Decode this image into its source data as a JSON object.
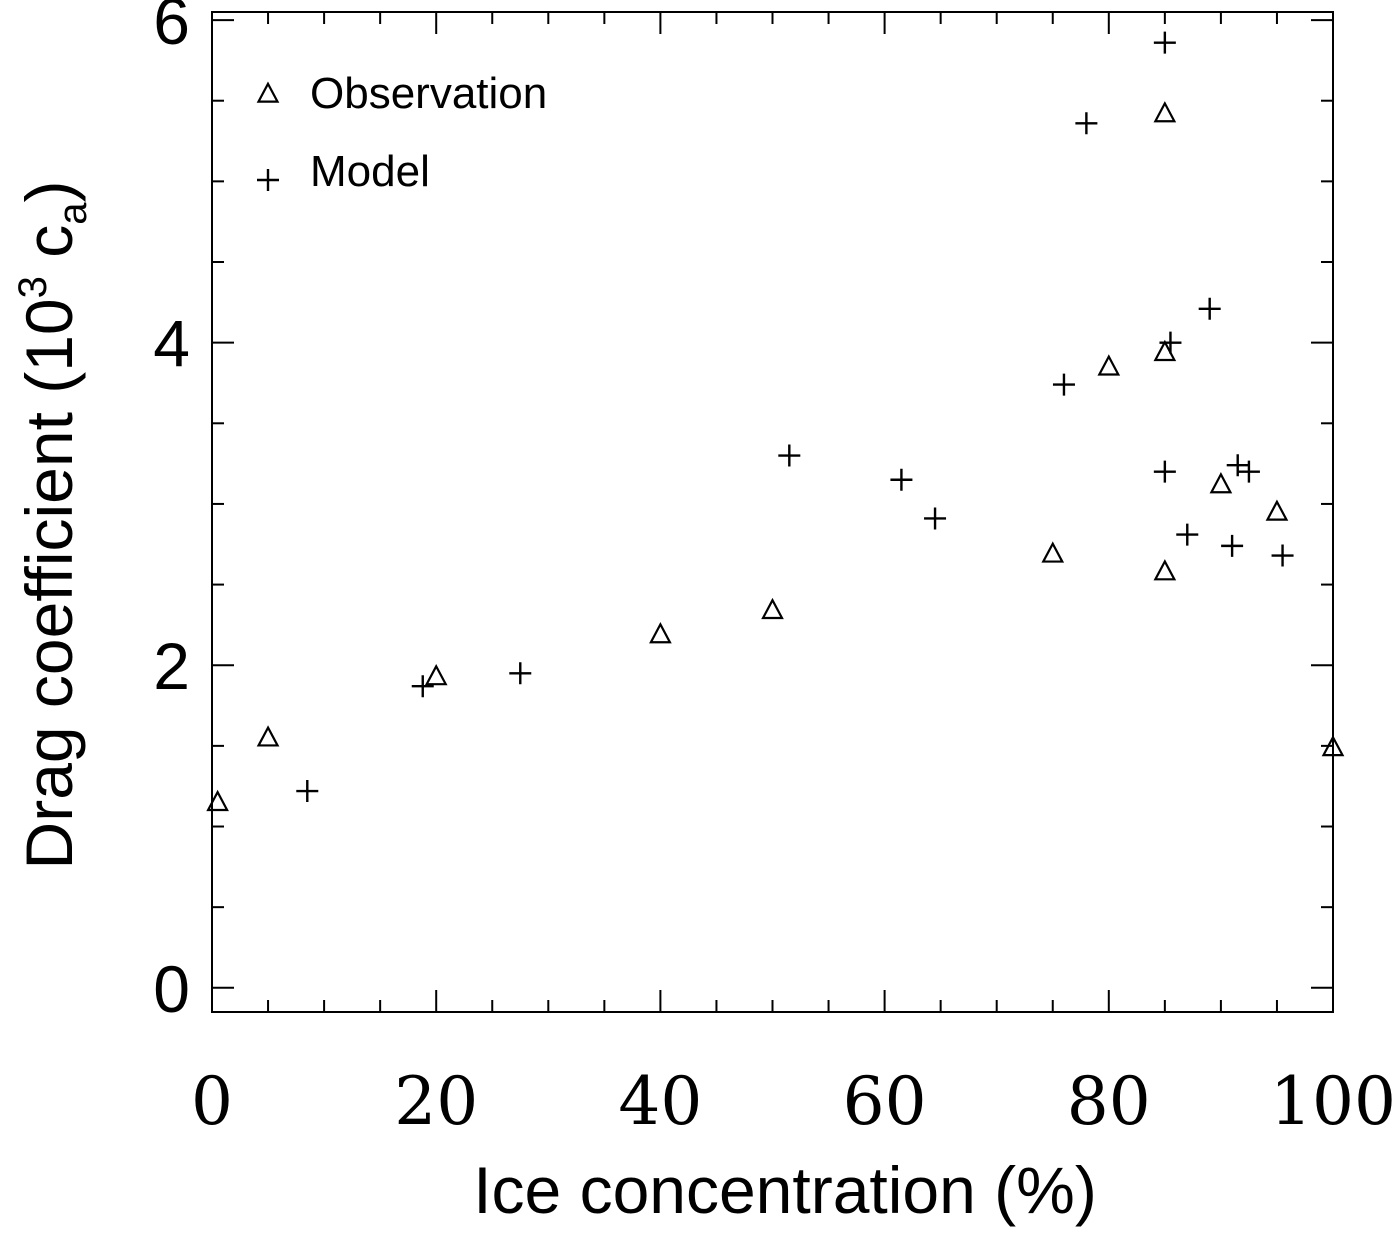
{
  "chart_data": {
    "type": "scatter",
    "title": "",
    "xlabel": "Ice concentration (%)",
    "ylabel_main": "Drag coefficient (10",
    "ylabel_sup": "3",
    "ylabel_c": " c",
    "ylabel_sub": "a",
    "ylabel_close": ")",
    "xlim": [
      0,
      100
    ],
    "ylim": [
      -0.15,
      6.05
    ],
    "x_ticks": [
      0,
      20,
      40,
      60,
      80,
      100
    ],
    "x_tick_labels": [
      "0",
      "20",
      "40",
      "60",
      "80",
      "100"
    ],
    "y_ticks": [
      0,
      2,
      4,
      6
    ],
    "y_tick_labels": [
      "0",
      "2",
      "4",
      "6"
    ],
    "x_minor_step": 5,
    "y_minor_step": 0.5,
    "grid": false,
    "legend_position": "top-left",
    "series": [
      {
        "name": "Observation",
        "marker": "triangle",
        "points": [
          [
            0.5,
            1.15
          ],
          [
            5,
            1.55
          ],
          [
            20,
            1.93
          ],
          [
            40,
            2.19
          ],
          [
            50,
            2.34
          ],
          [
            75,
            2.69
          ],
          [
            80,
            3.85
          ],
          [
            85,
            5.42
          ],
          [
            85,
            3.94
          ],
          [
            85,
            2.58
          ],
          [
            90,
            3.12
          ],
          [
            95,
            2.95
          ],
          [
            100,
            1.49
          ]
        ]
      },
      {
        "name": "Model",
        "marker": "plus",
        "points": [
          [
            8.5,
            1.22
          ],
          [
            18.8,
            1.87
          ],
          [
            27.5,
            1.95
          ],
          [
            51.5,
            3.3
          ],
          [
            61.5,
            3.15
          ],
          [
            64.5,
            2.91
          ],
          [
            76,
            3.74
          ],
          [
            78,
            5.36
          ],
          [
            85,
            5.86
          ],
          [
            85.5,
            4.0
          ],
          [
            89,
            4.21
          ],
          [
            85,
            3.2
          ],
          [
            87,
            2.81
          ],
          [
            91,
            2.74
          ],
          [
            91.5,
            3.24
          ],
          [
            92.5,
            3.2
          ],
          [
            95.5,
            2.68
          ]
        ]
      }
    ]
  }
}
